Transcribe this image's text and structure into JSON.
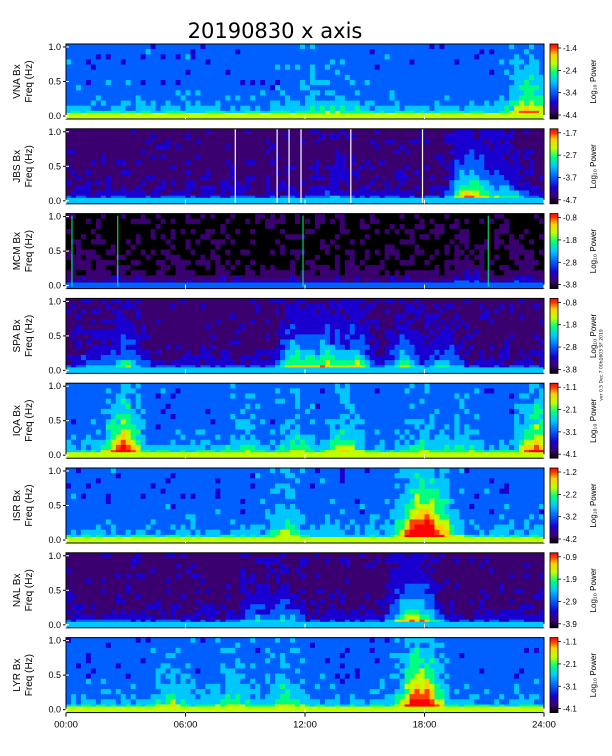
{
  "chart_data": {
    "type": "heatmap",
    "title": "20190830 x axis",
    "ylabel_common": "Freq (Hz)",
    "colorbar_label": "Log₁₀ Power",
    "x_ticks": [
      "00:00",
      "06:00",
      "12:00",
      "18:00",
      "24:00"
    ],
    "x_range_hours": [
      0,
      24
    ],
    "y_range_hz": [
      0,
      1.0
    ],
    "y_ticks": [
      "0.0",
      "0.5",
      "1.0"
    ],
    "side_note": "ver 0.5 Dec 7 00h1603 SF 2019",
    "panels": [
      {
        "station": "VNA Bx",
        "cbar_ticks": [
          "-1.4",
          "-2.4",
          "-3.4",
          "-4.4"
        ],
        "background": "blue",
        "activity": [
          [
            12.0,
            0.1
          ],
          [
            13.0,
            0.12
          ],
          [
            14.0,
            0.1
          ],
          [
            22.8,
            0.3
          ],
          [
            23.5,
            0.4
          ]
        ]
      },
      {
        "station": "JBS Bx",
        "cbar_ticks": [
          "-1.7",
          "-2.7",
          "-3.7",
          "-4.7"
        ],
        "background": "dark",
        "data_gaps_h": [
          8.5,
          10.6,
          11.2,
          11.8,
          14.3,
          17.9
        ],
        "activity": [
          [
            13.5,
            0.15
          ],
          [
            20.0,
            0.55
          ],
          [
            20.5,
            0.5
          ],
          [
            21.5,
            0.4
          ],
          [
            22.5,
            0.25
          ]
        ]
      },
      {
        "station": "MCM Bx",
        "cbar_ticks": [
          "-0.8",
          "-1.8",
          "-2.8",
          "-3.8"
        ],
        "background": "black",
        "spikes_h": [
          0.3,
          2.6,
          11.9,
          21.2
        ],
        "activity": [
          [
            20.2,
            0.2
          ],
          [
            23.0,
            0.1
          ]
        ]
      },
      {
        "station": "SPA Bx",
        "cbar_ticks": [
          "-0.8",
          "-1.8",
          "-2.8",
          "-3.8"
        ],
        "background": "dark",
        "activity": [
          [
            1.5,
            0.25
          ],
          [
            3.0,
            0.5
          ],
          [
            11.5,
            0.8
          ],
          [
            13.0,
            0.85
          ],
          [
            14.5,
            0.7
          ],
          [
            17.0,
            0.6
          ],
          [
            19.0,
            0.4
          ]
        ]
      },
      {
        "station": "IQA Bx",
        "cbar_ticks": [
          "-1.1",
          "-2.1",
          "-3.1",
          "-4.1"
        ],
        "background": "blue",
        "activity": [
          [
            2.9,
            1.0
          ],
          [
            9.0,
            0.2
          ],
          [
            11.5,
            0.25
          ],
          [
            14.0,
            0.4
          ],
          [
            18.0,
            0.2
          ],
          [
            20.0,
            0.2
          ],
          [
            23.6,
            0.8
          ]
        ]
      },
      {
        "station": "ISR Bx",
        "cbar_ticks": [
          "-1.2",
          "-2.2",
          "-3.2",
          "-4.2"
        ],
        "background": "blue",
        "activity": [
          [
            11.0,
            0.35
          ],
          [
            17.5,
            0.9
          ],
          [
            18.2,
            0.8
          ],
          [
            19.0,
            0.4
          ]
        ]
      },
      {
        "station": "NAL Bx",
        "cbar_ticks": [
          "-0.9",
          "-1.9",
          "-2.9",
          "-3.9"
        ],
        "background": "dark",
        "activity": [
          [
            9.5,
            0.3
          ],
          [
            11.0,
            0.35
          ],
          [
            17.0,
            0.7
          ],
          [
            18.0,
            0.6
          ]
        ]
      },
      {
        "station": "LYR Bx",
        "cbar_ticks": [
          "-1.1",
          "-2.1",
          "-3.1",
          "-4.1"
        ],
        "background": "blue",
        "activity": [
          [
            5.3,
            0.3
          ],
          [
            8.5,
            0.3
          ],
          [
            11.0,
            0.35
          ],
          [
            17.5,
            0.8
          ],
          [
            18.2,
            0.7
          ]
        ]
      }
    ]
  },
  "colors": {
    "colormap": [
      "#000000",
      "#3a0070",
      "#1a00d0",
      "#0060ff",
      "#00c8ff",
      "#00ff80",
      "#c0ff00",
      "#ffd000",
      "#ff4000",
      "#ff0000"
    ]
  }
}
